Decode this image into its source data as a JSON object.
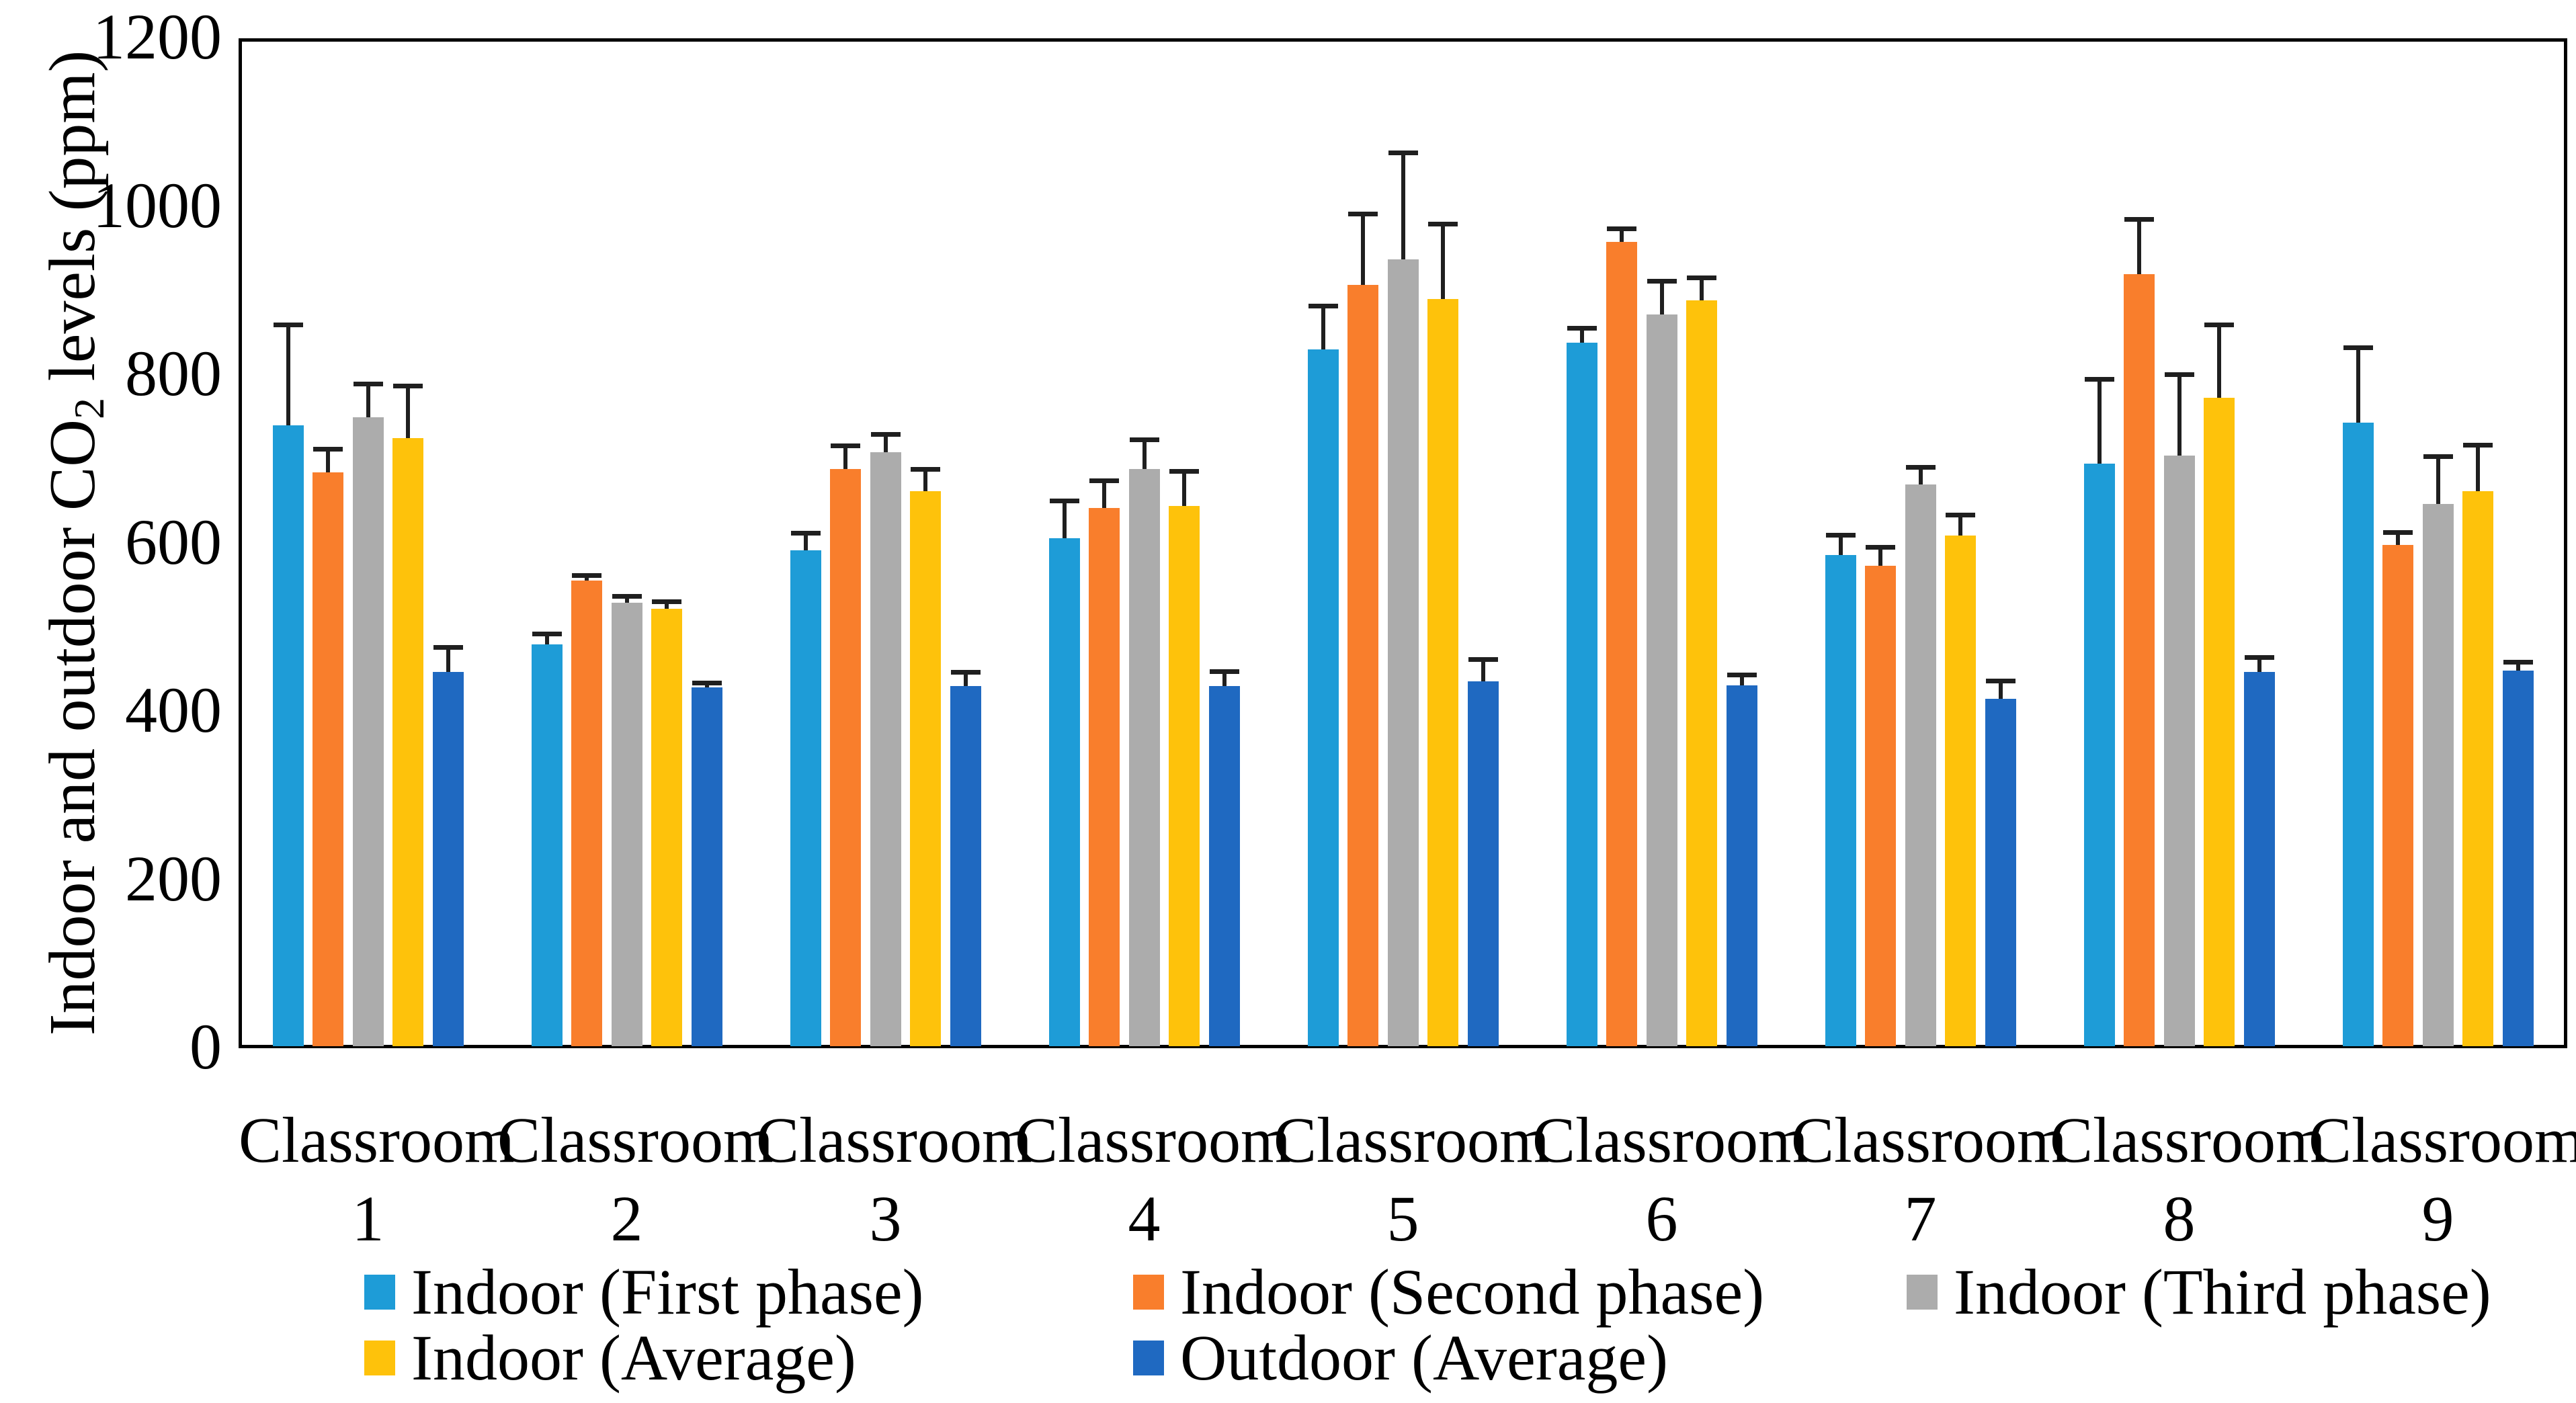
{
  "figure": {
    "background": "#ffffff",
    "frame_color": "#000000",
    "error_bar_color": "#1f1f1f"
  },
  "chart_data": {
    "type": "bar",
    "title": "",
    "ylabel_pre": "Indoor and outdoor CO",
    "ylabel_sub": "2",
    "ylabel_post": " levels (ppm)",
    "ylim": [
      0,
      1200
    ],
    "yticks": [
      0,
      200,
      400,
      600,
      800,
      1000,
      1200
    ],
    "grid": false,
    "legend_position": "bottom",
    "categories": [
      {
        "line1": "Classroom",
        "line2": "1"
      },
      {
        "line1": "Classroom",
        "line2": "2"
      },
      {
        "line1": "Classroom",
        "line2": "3"
      },
      {
        "line1": "Classroom",
        "line2": "4"
      },
      {
        "line1": "Classroom",
        "line2": "5"
      },
      {
        "line1": "Classroom",
        "line2": "6"
      },
      {
        "line1": "Classroom",
        "line2": "7"
      },
      {
        "line1": "Classroom",
        "line2": "8"
      },
      {
        "line1": "Classroom",
        "line2": "9"
      }
    ],
    "series": [
      {
        "name": "Indoor (First phase)",
        "color": "#1E9CD7",
        "values": [
          740,
          480,
          592,
          606,
          830,
          838,
          586,
          695,
          743
        ],
        "errors": [
          120,
          13,
          20,
          45,
          52,
          18,
          24,
          100,
          90
        ]
      },
      {
        "name": "Indoor (Second phase)",
        "color": "#F97E2C",
        "values": [
          684,
          556,
          688,
          642,
          907,
          958,
          573,
          920,
          598
        ],
        "errors": [
          28,
          6,
          28,
          33,
          85,
          16,
          23,
          65,
          15
        ]
      },
      {
        "name": "Indoor (Third phase)",
        "color": "#ACACAC",
        "values": [
          750,
          529,
          708,
          688,
          937,
          872,
          670,
          704,
          647
        ],
        "errors": [
          40,
          8,
          22,
          35,
          127,
          40,
          21,
          97,
          56
        ]
      },
      {
        "name": "Indoor (Average)",
        "color": "#FEC20B",
        "values": [
          725,
          522,
          662,
          644,
          890,
          889,
          609,
          773,
          662
        ],
        "errors": [
          62,
          9,
          26,
          42,
          90,
          27,
          25,
          87,
          55
        ]
      },
      {
        "name": "Outdoor (Average)",
        "color": "#1F69C1",
        "values": [
          447,
          429,
          430,
          430,
          436,
          431,
          415,
          447,
          449
        ],
        "errors": [
          30,
          5,
          17,
          18,
          26,
          13,
          22,
          18,
          10
        ]
      }
    ],
    "legend_rows": [
      [
        0,
        1,
        2
      ],
      [
        3,
        4
      ]
    ]
  }
}
